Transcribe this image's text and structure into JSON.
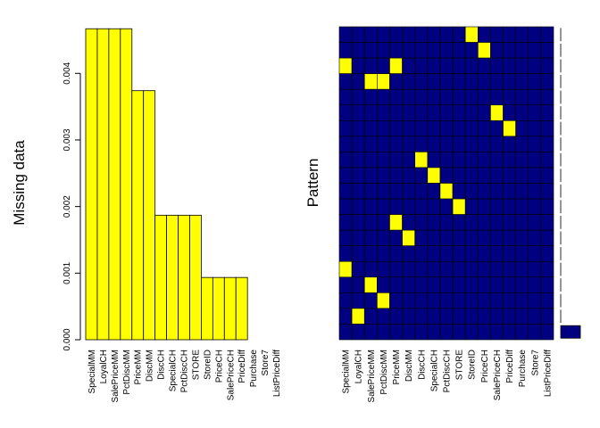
{
  "chart_data": [
    {
      "type": "bar",
      "ylabel": "Missing data",
      "categories": [
        "SpecialMM",
        "LoyalCH",
        "SalePriceMM",
        "PctDiscMM",
        "PriceMM",
        "DiscMM",
        "DiscCH",
        "SpecialCH",
        "PctDiscCH",
        "STORE",
        "StoreID",
        "PriceCH",
        "SalePriceCH",
        "PriceDiff",
        "Purchase",
        "Store7",
        "ListPriceDiff"
      ],
      "values": [
        0.00467,
        0.00467,
        0.00467,
        0.00467,
        0.00374,
        0.00374,
        0.00187,
        0.00187,
        0.00187,
        0.00187,
        0.000935,
        0.000935,
        0.000935,
        0.000935,
        0,
        0,
        0
      ],
      "color": "#ffff00",
      "ylim": [
        0,
        0.0047
      ],
      "yticks": [
        {
          "value": 0,
          "label": "0.000"
        },
        {
          "value": 0.001,
          "label": "0.001"
        },
        {
          "value": 0.002,
          "label": "0.002"
        },
        {
          "value": 0.003,
          "label": "0.003"
        },
        {
          "value": 0.004,
          "label": "0.004"
        }
      ]
    },
    {
      "type": "pattern",
      "ylabel": "Pattern",
      "columns": [
        "SpecialMM",
        "LoyalCH",
        "SalePriceMM",
        "PctDiscMM",
        "PriceMM",
        "DiscMM",
        "DiscCH",
        "SpecialCH",
        "PctDiscCH",
        "STORE",
        "StoreID",
        "PriceCH",
        "SalePriceCH",
        "PriceDiff",
        "Purchase",
        "Store7",
        "ListPriceDiff"
      ],
      "missing_color": "#ffff00",
      "present_color": "#000080",
      "pattern": [
        [
          0,
          0,
          0,
          0,
          0,
          0,
          0,
          0,
          0,
          0,
          1,
          0,
          0,
          0,
          0,
          0,
          0
        ],
        [
          0,
          0,
          0,
          0,
          0,
          0,
          0,
          0,
          0,
          0,
          0,
          1,
          0,
          0,
          0,
          0,
          0
        ],
        [
          1,
          0,
          0,
          0,
          1,
          0,
          0,
          0,
          0,
          0,
          0,
          0,
          0,
          0,
          0,
          0,
          0
        ],
        [
          0,
          0,
          1,
          1,
          0,
          0,
          0,
          0,
          0,
          0,
          0,
          0,
          0,
          0,
          0,
          0,
          0
        ],
        [
          0,
          0,
          0,
          0,
          0,
          0,
          0,
          0,
          0,
          0,
          0,
          0,
          0,
          0,
          0,
          0,
          0
        ],
        [
          0,
          0,
          0,
          0,
          0,
          0,
          0,
          0,
          0,
          0,
          0,
          0,
          1,
          0,
          0,
          0,
          0
        ],
        [
          0,
          0,
          0,
          0,
          0,
          0,
          0,
          0,
          0,
          0,
          0,
          0,
          0,
          1,
          0,
          0,
          0
        ],
        [
          0,
          0,
          0,
          0,
          0,
          0,
          0,
          0,
          0,
          0,
          0,
          0,
          0,
          0,
          0,
          0,
          0
        ],
        [
          0,
          0,
          0,
          0,
          0,
          0,
          1,
          0,
          0,
          0,
          0,
          0,
          0,
          0,
          0,
          0,
          0
        ],
        [
          0,
          0,
          0,
          0,
          0,
          0,
          0,
          1,
          0,
          0,
          0,
          0,
          0,
          0,
          0,
          0,
          0
        ],
        [
          0,
          0,
          0,
          0,
          0,
          0,
          0,
          0,
          1,
          0,
          0,
          0,
          0,
          0,
          0,
          0,
          0
        ],
        [
          0,
          0,
          0,
          0,
          0,
          0,
          0,
          0,
          0,
          1,
          0,
          0,
          0,
          0,
          0,
          0,
          0
        ],
        [
          0,
          0,
          0,
          0,
          1,
          0,
          0,
          0,
          0,
          0,
          0,
          0,
          0,
          0,
          0,
          0,
          0
        ],
        [
          0,
          0,
          0,
          0,
          0,
          1,
          0,
          0,
          0,
          0,
          0,
          0,
          0,
          0,
          0,
          0,
          0
        ],
        [
          0,
          0,
          0,
          0,
          0,
          0,
          0,
          0,
          0,
          0,
          0,
          0,
          0,
          0,
          0,
          0,
          0
        ],
        [
          1,
          0,
          0,
          0,
          0,
          0,
          0,
          0,
          0,
          0,
          0,
          0,
          0,
          0,
          0,
          0,
          0
        ],
        [
          0,
          0,
          1,
          0,
          0,
          0,
          0,
          0,
          0,
          0,
          0,
          0,
          0,
          0,
          0,
          0,
          0
        ],
        [
          0,
          0,
          0,
          1,
          0,
          0,
          0,
          0,
          0,
          0,
          0,
          0,
          0,
          0,
          0,
          0,
          0
        ],
        [
          0,
          1,
          0,
          0,
          0,
          0,
          0,
          0,
          0,
          0,
          0,
          0,
          0,
          0,
          0,
          0,
          0
        ],
        [
          0,
          0,
          0,
          0,
          0,
          0,
          0,
          0,
          0,
          0,
          0,
          0,
          0,
          0,
          0,
          0,
          0
        ]
      ],
      "frequencies": [
        1,
        1,
        1,
        1,
        1,
        1,
        1,
        1,
        1,
        1,
        1,
        1,
        1,
        1,
        1,
        1,
        1,
        1,
        1,
        1048
      ]
    }
  ]
}
